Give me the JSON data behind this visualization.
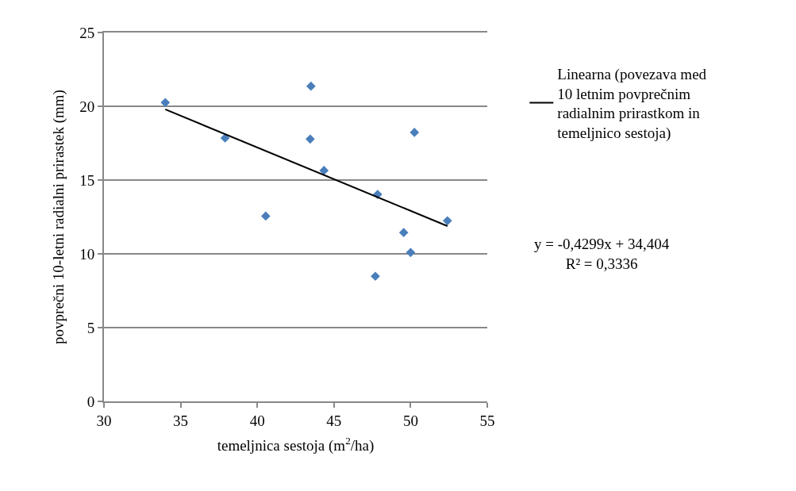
{
  "chart_data": {
    "type": "scatter",
    "xlabel": "temeljnica sestoja (m$^{2}$/ha)",
    "ylabel": "povprečni 10-letni radialni prirastek (mm)",
    "series": [
      {
        "color": "#4a7ebb",
        "marker": "diamond",
        "x": [
          34.0,
          37.9,
          40.55,
          43.5,
          43.45,
          44.35,
          47.85,
          47.7,
          49.55,
          50.0,
          50.25,
          52.4
        ],
        "values": [
          20.25,
          17.85,
          12.56,
          21.36,
          17.78,
          15.65,
          14.03,
          8.48,
          11.44,
          10.09,
          18.23,
          12.24
        ]
      },
      {
        "type": "line",
        "name": "Linearna (povezava med 10 letnim povprečnim radialnim prirastkom in temeljnico sestoja)",
        "color": "#000000",
        "line_style": "solid",
        "x": [
          34.0,
          52.4
        ],
        "values": [
          19.79,
          11.88
        ]
      }
    ],
    "annotations": [
      "y = -0,4299x + 34,404\nR² = 0,3336"
    ],
    "xlim": [
      30,
      55
    ],
    "xticks": [
      30,
      35,
      40,
      45,
      50,
      55
    ],
    "ylim": [
      0,
      25
    ],
    "yticks": [
      0,
      5,
      10,
      15,
      20,
      25
    ],
    "grid": "y",
    "legend": "right"
  }
}
